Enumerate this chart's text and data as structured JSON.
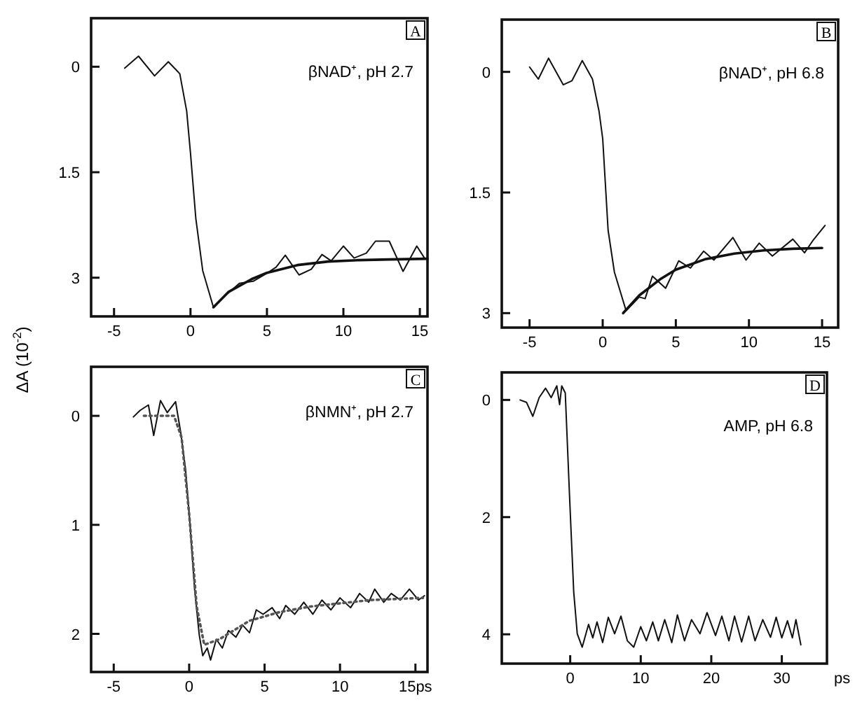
{
  "chart_data": [
    {
      "type": "line",
      "xlim": [
        -6.5,
        15.5
      ],
      "ylim": [
        3.55,
        -0.69
      ],
      "xticks": [
        -5,
        0,
        5,
        10,
        15
      ],
      "yticks": [
        0,
        1.5,
        3
      ],
      "annotations": [
        "βNAD⁺, pH 2.7",
        "A"
      ],
      "series": [
        {
          "color": "#111111",
          "x": [
            -4.3,
            -3.4,
            -2.35,
            -1.45,
            -0.7,
            -0.25,
            0,
            0.35,
            0.8,
            1.5,
            2.3,
            3.2,
            4.1,
            4.9,
            5.6,
            6.2,
            7.1,
            7.9,
            8.6,
            9.2,
            10,
            10.7,
            11.5,
            12.1,
            13,
            13.9,
            14.8,
            15.3
          ],
          "values": [
            0.02,
            -0.15,
            0.13,
            -0.07,
            0.1,
            0.63,
            1.23,
            2.16,
            2.9,
            3.42,
            3.25,
            3.08,
            3.05,
            2.95,
            2.85,
            2.68,
            2.96,
            2.88,
            2.67,
            2.76,
            2.55,
            2.72,
            2.65,
            2.48,
            2.48,
            2.91,
            2.55,
            2.72
          ]
        },
        {
          "color": "#111111",
          "x": [
            1.5,
            2.5,
            4,
            5,
            7,
            9,
            11,
            13,
            15.5
          ],
          "values": [
            3.42,
            3.2,
            3.02,
            2.93,
            2.82,
            2.77,
            2.75,
            2.74,
            2.73
          ]
        }
      ]
    },
    {
      "type": "line",
      "xlim": [
        -6.9,
        16.1
      ],
      "ylim": [
        3.18,
        -0.65
      ],
      "xticks": [
        -5,
        0,
        5,
        10,
        15
      ],
      "yticks": [
        0,
        1.5,
        3
      ],
      "annotations": [
        "βNAD⁺, pH 6.8",
        "B"
      ],
      "series": [
        {
          "color": "#111111",
          "x": [
            -5,
            -4.4,
            -3.7,
            -2.7,
            -2.1,
            -1.4,
            -0.7,
            -0.25,
            0,
            0.37,
            0.8,
            1.6,
            2.5,
            2.9,
            3.4,
            4.3,
            5.2,
            6,
            6.9,
            7.6,
            8.9,
            9.8,
            10.7,
            11.6,
            13,
            13.8,
            14.4,
            15.2
          ],
          "values": [
            -0.06,
            0.09,
            -0.17,
            0.16,
            0.11,
            -0.14,
            0.09,
            0.49,
            0.83,
            1.97,
            2.49,
            2.97,
            2.8,
            2.82,
            2.54,
            2.69,
            2.35,
            2.44,
            2.23,
            2.34,
            2.06,
            2.34,
            2.13,
            2.29,
            2.08,
            2.25,
            2.09,
            1.91
          ]
        },
        {
          "color": "#111111",
          "x": [
            1.4,
            2.5,
            4,
            5,
            7,
            9,
            11,
            13,
            15
          ],
          "values": [
            3.0,
            2.78,
            2.57,
            2.46,
            2.33,
            2.26,
            2.22,
            2.2,
            2.19
          ]
        }
      ]
    },
    {
      "type": "line",
      "xlim": [
        -6.5,
        15.8
      ],
      "ylim": [
        2.35,
        -0.45
      ],
      "xticks": [
        -5,
        0,
        5,
        10,
        {
          "value": 15,
          "label": "15ps"
        }
      ],
      "yticks": [
        0,
        1,
        2
      ],
      "ylabel": "ΔA (10$^{-2}$)",
      "annotations": [
        "βNMN⁺, pH 2.7",
        "C"
      ],
      "series": [
        {
          "color": "#111111",
          "x": [
            -3.7,
            -3.25,
            -2.7,
            -2.35,
            -1.9,
            -1.45,
            -0.9,
            -0.55,
            -0.24,
            0.06,
            0.36,
            0.67,
            0.9,
            1.2,
            1.42,
            1.8,
            2.2,
            2.6,
            3.1,
            3.55,
            4.0,
            4.45,
            4.9,
            5.5,
            6,
            6.4,
            7,
            7.6,
            8.2,
            8.8,
            9.4,
            10,
            10.7,
            11.3,
            11.9,
            12.3,
            12.9,
            13.4,
            14,
            14.6,
            15.2,
            15.6
          ],
          "values": [
            0.01,
            -0.05,
            -0.1,
            0.18,
            -0.14,
            -0.03,
            -0.13,
            0.16,
            0.49,
            1.0,
            1.59,
            2.01,
            2.2,
            2.13,
            2.24,
            2.05,
            2.13,
            1.97,
            2.03,
            1.92,
            1.99,
            1.78,
            1.82,
            1.76,
            1.86,
            1.74,
            1.82,
            1.71,
            1.82,
            1.69,
            1.78,
            1.67,
            1.76,
            1.63,
            1.71,
            1.59,
            1.71,
            1.63,
            1.69,
            1.59,
            1.69,
            1.65
          ]
        },
        {
          "color": "#555555",
          "line_style": "dotted",
          "x": [
            -3,
            -1,
            -0.5,
            0,
            0.5,
            1,
            2,
            4,
            6,
            8,
            10,
            12,
            15.5
          ],
          "values": [
            0,
            0,
            0.2,
            0.9,
            1.75,
            2.1,
            2.05,
            1.88,
            1.8,
            1.75,
            1.72,
            1.69,
            1.67
          ]
        }
      ]
    },
    {
      "type": "line",
      "xlim": [
        -9.7,
        36.4
      ],
      "ylim": [
        4.5,
        -0.47
      ],
      "xticks": [
        0,
        10,
        20,
        30
      ],
      "yticks": [
        0,
        2,
        4
      ],
      "xlabel": "ps",
      "annotations": [
        "AMP, pH 6.8",
        "D"
      ],
      "series": [
        {
          "color": "#111111",
          "x": [
            -7.1,
            -6.2,
            -5.3,
            -4.4,
            -3.5,
            -2.7,
            -1.9,
            -1.5,
            -1.2,
            -0.7,
            -0.1,
            0.5,
            1.0,
            1.7,
            2.6,
            3.2,
            3.8,
            4.6,
            5.4,
            6.3,
            7.2,
            8.1,
            9.0,
            10,
            10.8,
            11.7,
            12.5,
            13.4,
            14.4,
            15.2,
            16.2,
            17.2,
            18.4,
            19.4,
            20.6,
            21.5,
            22.5,
            23.3,
            24.3,
            25.3,
            26.2,
            27.3,
            28.4,
            29.2,
            30,
            30.8,
            31.5,
            32,
            32.7
          ],
          "values": [
            0,
            0.04,
            0.28,
            -0.04,
            -0.2,
            -0.04,
            -0.24,
            0.08,
            -0.24,
            -0.12,
            1.62,
            3.28,
            3.99,
            4.22,
            3.83,
            4.06,
            3.79,
            4.14,
            3.71,
            3.99,
            3.69,
            4.11,
            4.22,
            3.87,
            4.11,
            3.79,
            4.11,
            3.75,
            4.14,
            3.67,
            4.11,
            3.75,
            3.99,
            3.63,
            4.02,
            3.69,
            4.11,
            3.69,
            4.13,
            3.69,
            4.11,
            3.75,
            4.05,
            3.71,
            4.06,
            3.77,
            4.06,
            3.75,
            4.18
          ]
        }
      ]
    }
  ]
}
